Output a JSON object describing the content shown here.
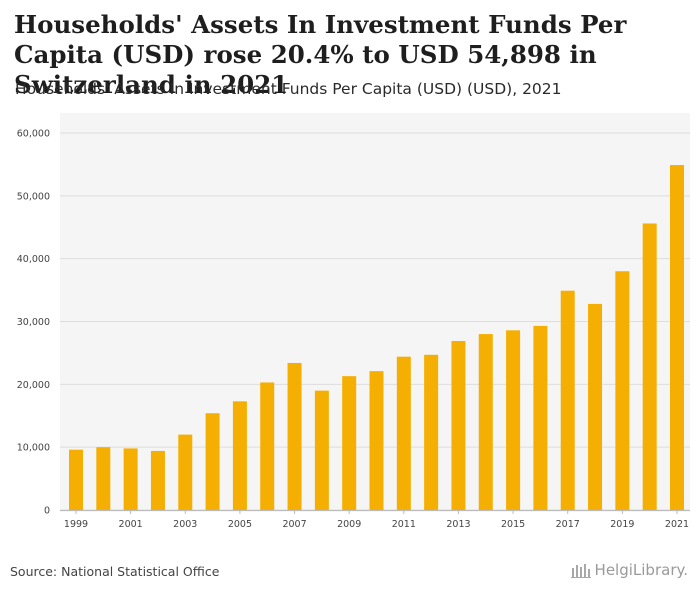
{
  "header": {
    "title": "Households' Assets In Investment Funds Per Capita (USD) rose 20.4% to USD 54,898 in Switzerland in 2021",
    "subtitle": "Households' Assets In Investment Funds Per Capita (USD) (USD), 2021"
  },
  "footer": {
    "source": "Source: National Statistical Office",
    "brand": "HelgiLibrary."
  },
  "colors": {
    "bar": "#F5AF02",
    "grid": "#dddddd",
    "plot_bg": "#f5f5f5"
  },
  "chart_data": {
    "type": "bar",
    "title": "Households' Assets In Investment Funds Per Capita (USD) (USD), 2021",
    "xlabel": "",
    "ylabel": "",
    "ylim": [
      0,
      60000
    ],
    "yticks": [
      0,
      10000,
      20000,
      30000,
      40000,
      50000,
      60000
    ],
    "ytick_labels": [
      "0",
      "10,000",
      "20,000",
      "30,000",
      "40,000",
      "50,000",
      "60,000"
    ],
    "categories": [
      "1999",
      "2000",
      "2001",
      "2002",
      "2003",
      "2004",
      "2005",
      "2006",
      "2007",
      "2008",
      "2009",
      "2010",
      "2011",
      "2012",
      "2013",
      "2014",
      "2015",
      "2016",
      "2017",
      "2018",
      "2019",
      "2020",
      "2021"
    ],
    "xtick_labels": [
      "1999",
      "",
      "2001",
      "",
      "2003",
      "",
      "2005",
      "",
      "2007",
      "",
      "2009",
      "",
      "2011",
      "",
      "2013",
      "",
      "2015",
      "",
      "2017",
      "",
      "2019",
      "",
      "2021"
    ],
    "values": [
      9600,
      10000,
      9800,
      9400,
      12000,
      15400,
      17300,
      20300,
      23400,
      19000,
      21300,
      22100,
      24400,
      24700,
      26900,
      28000,
      28600,
      29300,
      34900,
      32800,
      38000,
      45600,
      54898
    ],
    "grid": true,
    "legend": "none"
  }
}
